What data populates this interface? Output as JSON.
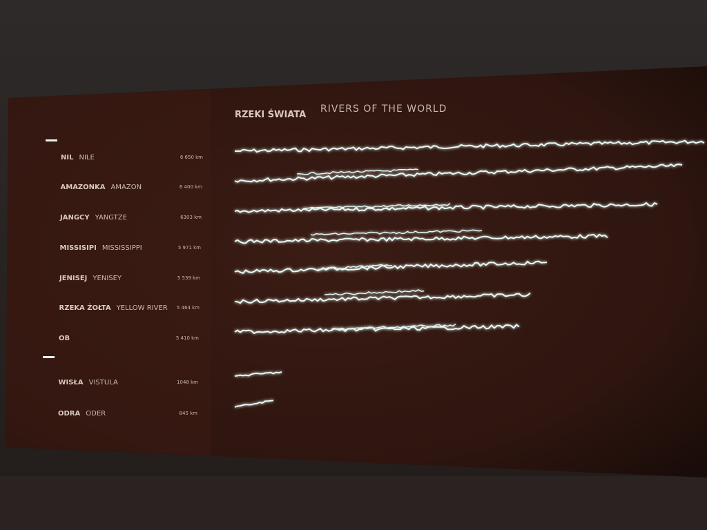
{
  "title": {
    "pl": "RZEKI ŚWIATA",
    "en": "RIVERS OF THE WORLD"
  },
  "rivers": [
    {
      "pl": "NIL",
      "en": "NILE",
      "length": "6 650 km"
    },
    {
      "pl": "AMAZONKA",
      "en": "AMAZON",
      "length": "6 400 km"
    },
    {
      "pl": "JANGCY",
      "en": "YANGTZE",
      "length": "6303 km"
    },
    {
      "pl": "MISSISIPI",
      "en": "MISSISSIPPI",
      "length": "5 971 km"
    },
    {
      "pl": "JENISEJ",
      "en": "YENISEY",
      "length": "5 539 km"
    },
    {
      "pl": "RZEKA ŻOŁTA",
      "en": "YELLOW RIVER",
      "length": "5 464 km"
    },
    {
      "pl": "OB",
      "en": "",
      "length": "5 410 km"
    },
    {
      "pl": "WISŁA",
      "en": "VISTULA",
      "length": "1048 km"
    },
    {
      "pl": "ODRA",
      "en": "ODER",
      "length": "845 km"
    }
  ]
}
